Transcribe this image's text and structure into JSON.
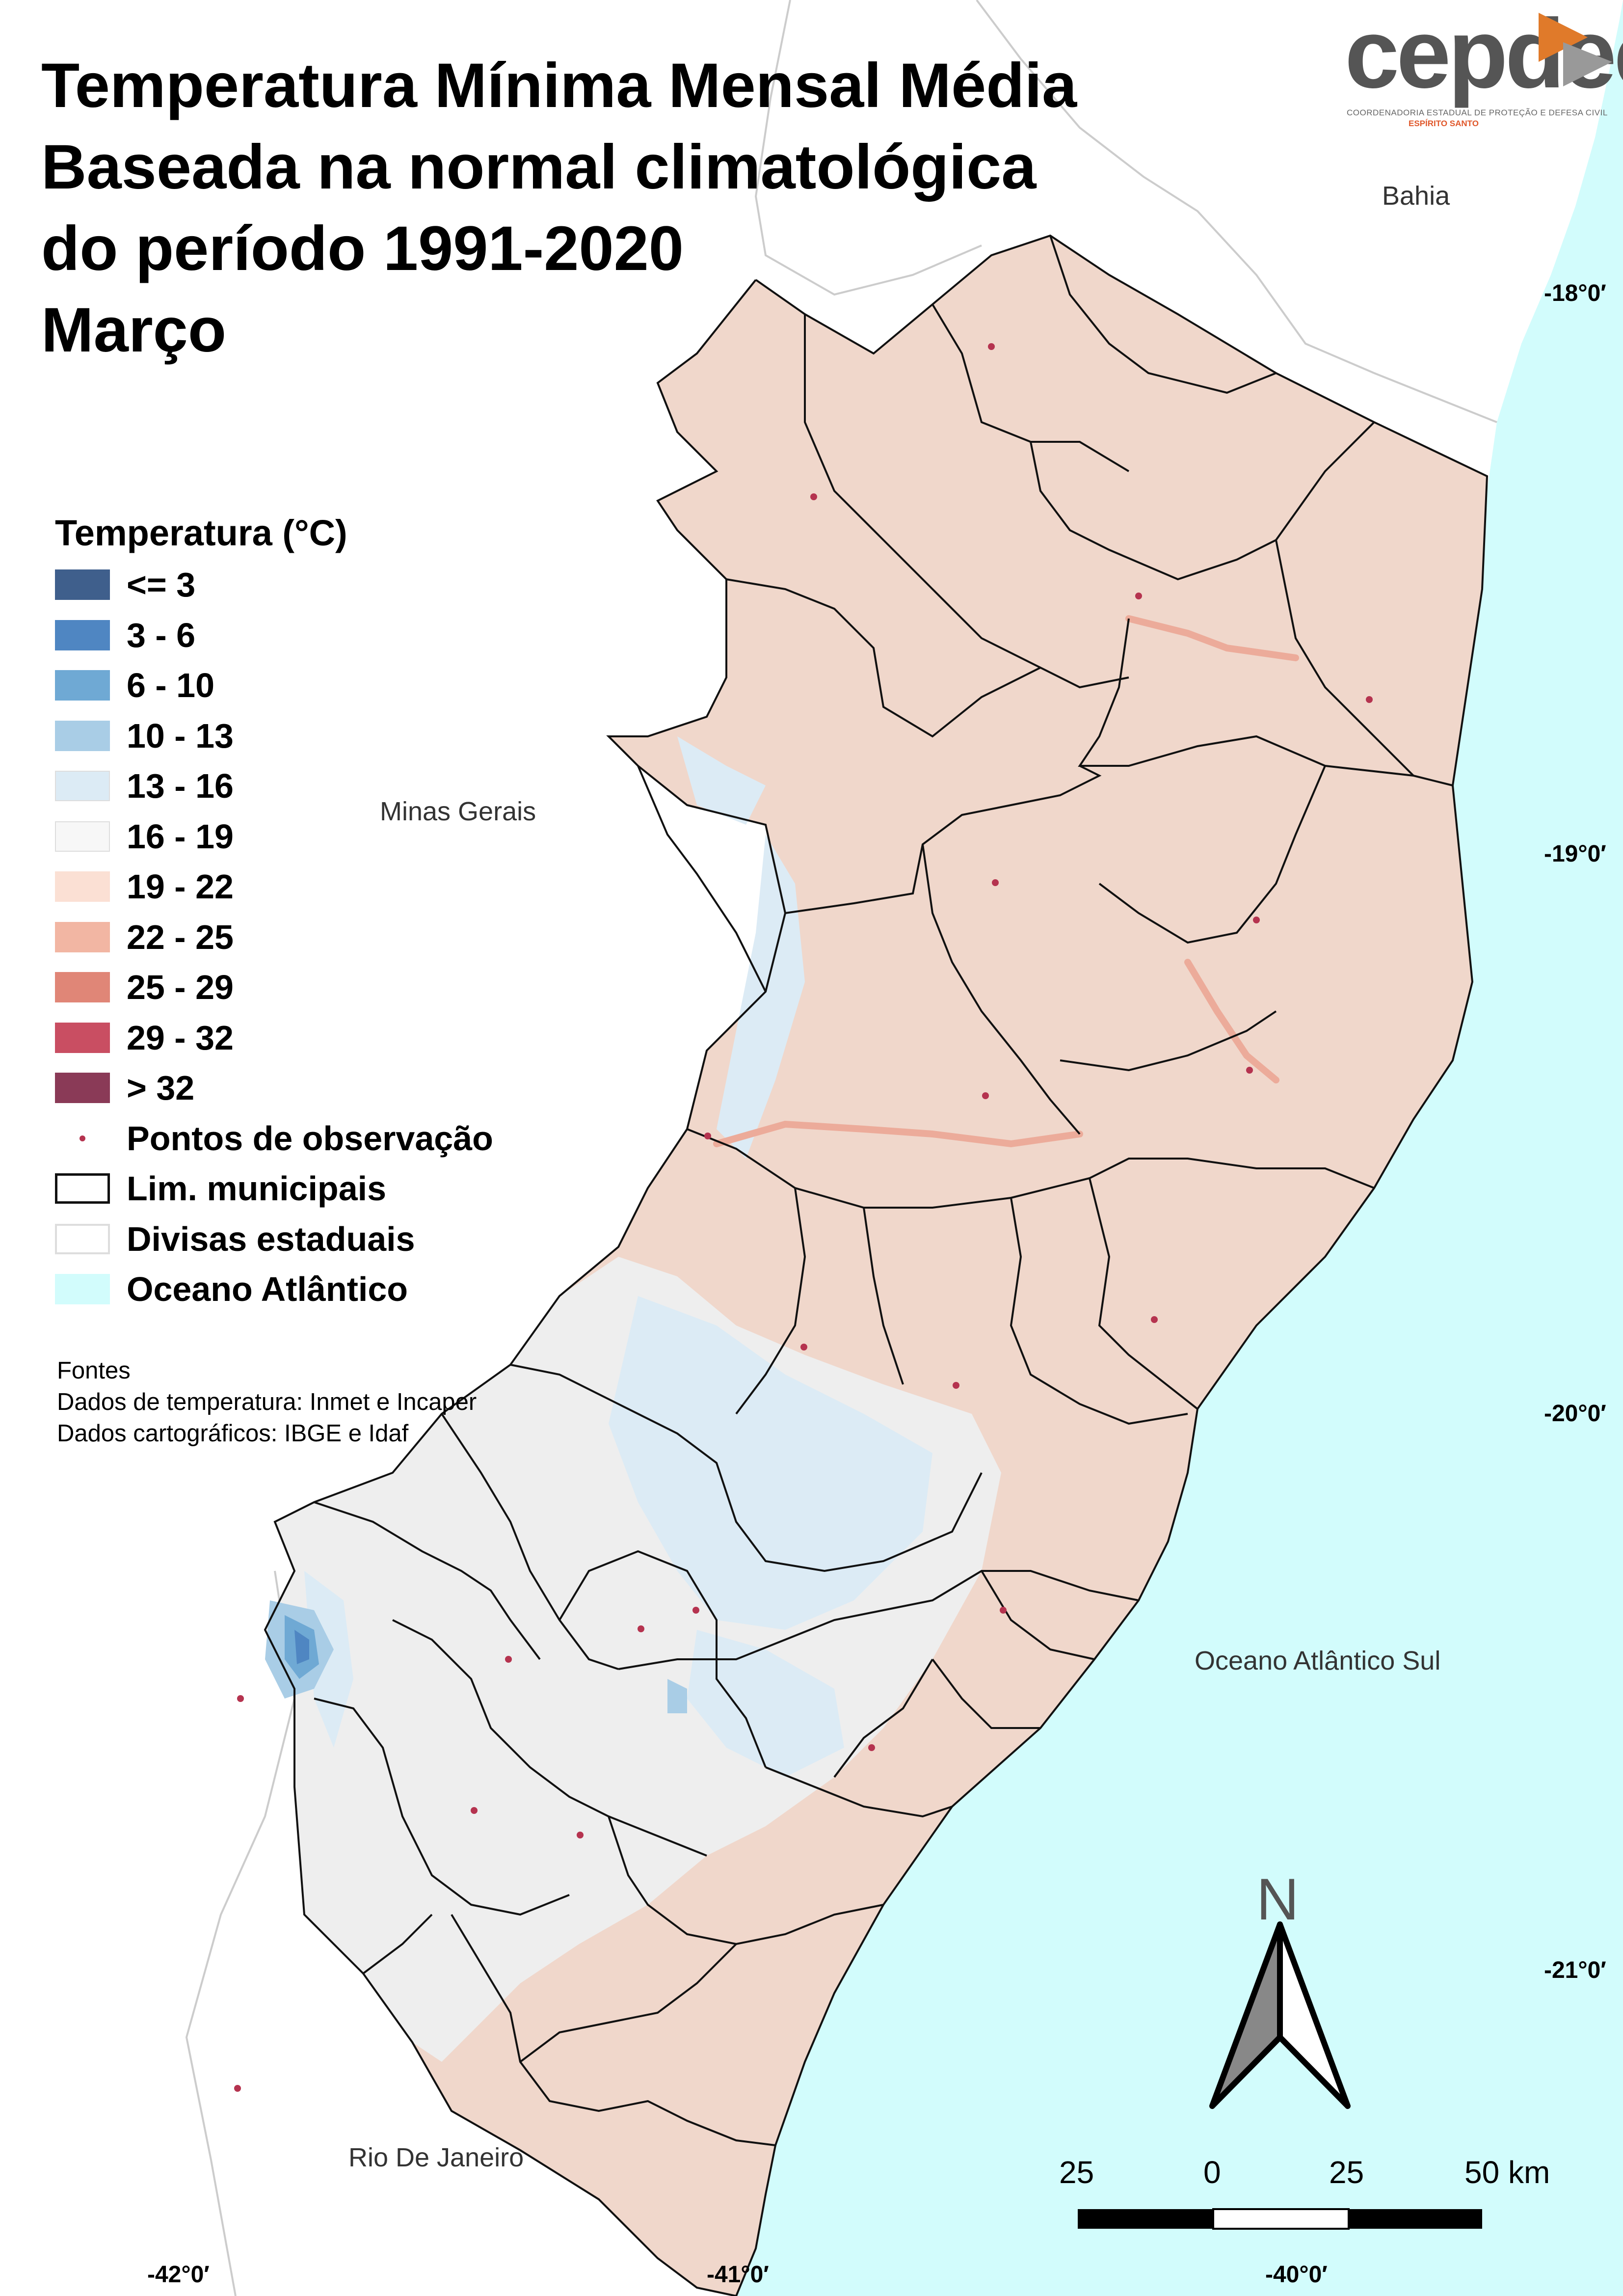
{
  "title": {
    "line1": "Temperatura Mínima Mensal Média",
    "line2": "Baseada na normal climatológica",
    "line3": "do período 1991-2020",
    "line4": "Março"
  },
  "logo": {
    "word": "cepdec",
    "subtitle": "COORDENADORIA ESTADUAL DE PROTEÇÃO E DEFESA CIVIL",
    "subtitle2": "ESPÍRITO SANTO",
    "accent_color": "#e07a2a"
  },
  "legend": {
    "title": "Temperatura (°C)",
    "classes": [
      {
        "label": "<= 3",
        "color": "#3f5f8c"
      },
      {
        "label": "3 - 6",
        "color": "#4f86c2"
      },
      {
        "label": "6 - 10",
        "color": "#6fa9d4"
      },
      {
        "label": "10 - 13",
        "color": "#a9cde6"
      },
      {
        "label": "13 - 16",
        "color": "#dcebf5"
      },
      {
        "label": "16 - 19",
        "color": "#f7f7f7"
      },
      {
        "label": "19 - 22",
        "color": "#fbe0d4"
      },
      {
        "label": "22 - 25",
        "color": "#f2b6a3"
      },
      {
        "label": "25 - 29",
        "color": "#e08677"
      },
      {
        "label": "29 - 32",
        "color": "#c94e62"
      },
      {
        "label": "> 32",
        "color": "#8a3a57"
      }
    ],
    "points_label": "Pontos de observação",
    "municipal_label": "Lim. municipais",
    "state_label": "Divisas estaduais",
    "ocean_label": "Oceano Atlântico",
    "ocean_color": "#d2fcfc"
  },
  "sources": {
    "heading": "Fontes",
    "line1": "Dados de temperatura: Inmet e Incaper",
    "line2": "Dados cartográficos: IBGE e Idaf"
  },
  "places": {
    "bahia": "Bahia",
    "minas": "Minas Gerais",
    "ocean": "Oceano Atlântico Sul",
    "rio": "Rio De Janeiro"
  },
  "coords": {
    "lat18": "-18°0′",
    "lat19": "-19°0′",
    "lat20": "-20°0′",
    "lat21": "-21°0′",
    "lon42": "-42°0′",
    "lon41": "-41°0′",
    "lon40": "-40°0′"
  },
  "scale": {
    "l1": "25",
    "l2": "0",
    "l3": "25",
    "l4": "50 km"
  },
  "north": "N"
}
